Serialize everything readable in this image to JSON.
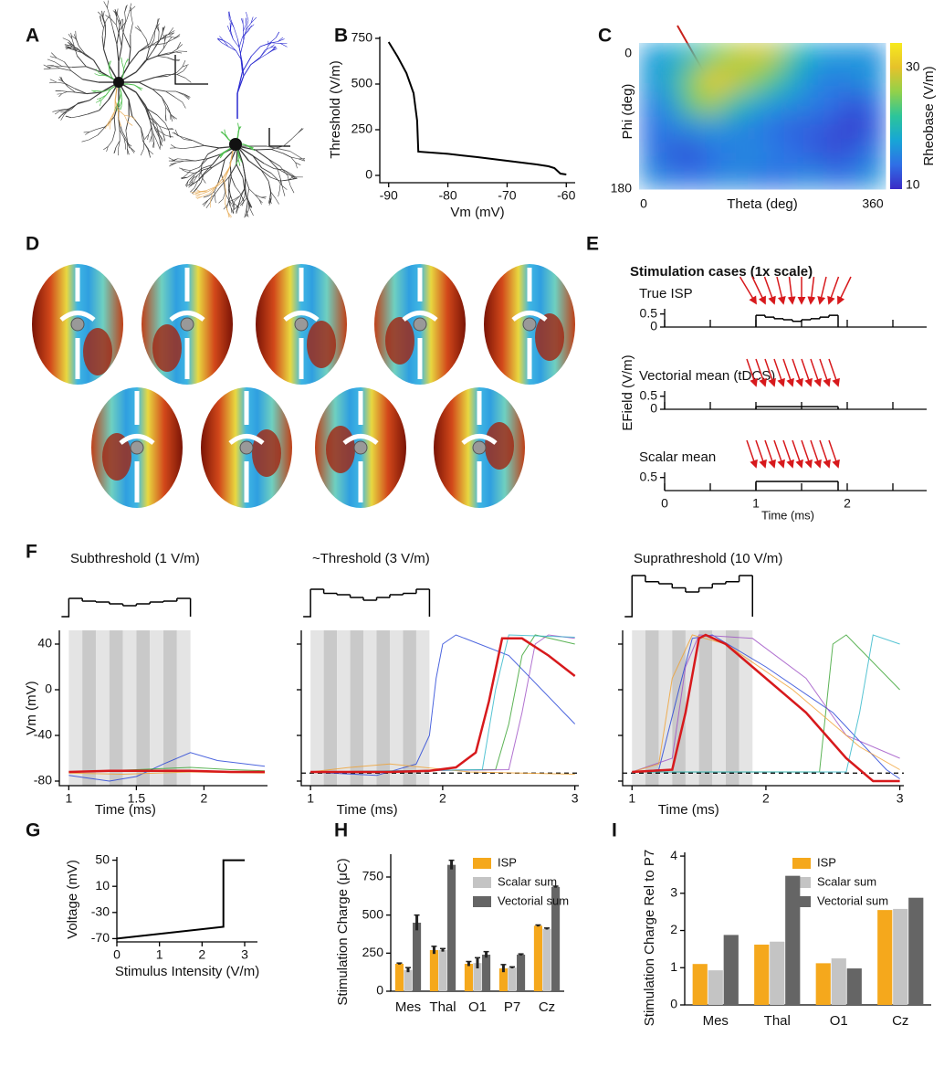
{
  "panel_labels": [
    "A",
    "B",
    "C",
    "D",
    "E",
    "F",
    "G",
    "H",
    "I"
  ],
  "chart_data": [
    {
      "type": "line",
      "xlabel": "Vm (mV)",
      "ylabel": "Threshold (V/m)",
      "color": "#000000",
      "x": [
        -90,
        -88.5,
        -87,
        -85.8,
        -85.2,
        -85,
        -80,
        -75,
        -70,
        -65,
        -63,
        -62,
        -61,
        -60
      ],
      "values": [
        730,
        650,
        560,
        450,
        300,
        130,
        118,
        100,
        80,
        60,
        50,
        40,
        10,
        5
      ],
      "xlim": [
        -91.5,
        -58.5
      ],
      "xticks": [
        -90,
        -80,
        -70,
        -60
      ],
      "ylim": [
        -40,
        760
      ],
      "yticks": [
        0,
        250,
        500,
        750
      ]
    },
    {
      "type": "heatmap",
      "xlabel": "Theta (deg)",
      "ylabel": "Phi (deg)",
      "colorbar_label": "Rheobase (V/m)",
      "xlim": [
        0,
        360
      ],
      "xticks": [
        0,
        360
      ],
      "ylim": [
        0,
        180
      ],
      "yticks": [
        0,
        180
      ],
      "y_inverted": true,
      "colorbar_lim": [
        10,
        34
      ],
      "colorbar_ticks": [
        10,
        30
      ],
      "colorscale": [
        "#3b2bc6",
        "#2f6fe6",
        "#17a6d6",
        "#2cc59a",
        "#92d14a",
        "#e6c22a",
        "#f7ea1e"
      ],
      "values": [
        [
          17,
          18,
          20,
          24,
          27,
          29,
          28,
          22,
          18,
          17,
          17,
          16
        ],
        [
          17,
          19,
          25,
          31,
          29,
          26,
          23,
          19,
          16,
          15,
          16,
          17
        ],
        [
          15,
          17,
          24,
          27,
          22,
          19,
          17,
          16,
          15,
          14,
          12,
          14
        ],
        [
          14,
          15,
          16,
          17,
          16,
          15,
          14,
          13,
          13,
          12,
          11,
          13
        ],
        [
          15,
          13,
          12,
          14,
          15,
          16,
          15,
          14,
          13,
          12,
          13,
          15
        ],
        [
          16,
          15,
          14,
          15,
          16,
          15,
          14,
          15,
          16,
          14,
          15,
          17
        ]
      ]
    },
    {
      "type": "step",
      "title": "Stimulation cases (1x scale)",
      "xlabel": "Time (ms)",
      "ylabel": "EField (V/m)",
      "xlim": [
        0,
        2.87
      ],
      "xticks": [
        0,
        1,
        2
      ],
      "xminor": [
        0.5,
        1.5,
        2.5
      ],
      "ylim": [
        0,
        0.7
      ],
      "color": "#000000",
      "arrow_color": "#d7191c",
      "subplots": [
        {
          "name": "True ISP",
          "yticks": [
            0,
            0.5
          ],
          "bins": [
            1,
            1.1,
            1.2,
            1.3,
            1.4,
            1.5,
            1.6,
            1.7,
            1.8,
            1.9
          ],
          "values": [
            0.45,
            0.38,
            0.32,
            0.28,
            0.22,
            0.28,
            0.32,
            0.38,
            0.45
          ]
        },
        {
          "name": "Vectorial mean (tDCS)",
          "yticks": [
            0,
            0.5
          ],
          "bins": [
            1,
            1.1,
            1.2,
            1.3,
            1.4,
            1.5,
            1.6,
            1.7,
            1.8,
            1.9
          ],
          "values": [
            0.1,
            0.1,
            0.1,
            0.1,
            0.1,
            0.1,
            0.1,
            0.1,
            0.1
          ]
        },
        {
          "name": "Scalar mean",
          "yticks": [
            0.5
          ],
          "bins": [
            1,
            1.1,
            1.2,
            1.3,
            1.4,
            1.5,
            1.6,
            1.7,
            1.8,
            1.9
          ],
          "values": [
            0.35,
            0.35,
            0.35,
            0.35,
            0.35,
            0.35,
            0.35,
            0.35,
            0.35
          ]
        }
      ]
    },
    {
      "type": "traces",
      "ylabel": "Vm (mV)",
      "ylim": [
        -84,
        52
      ],
      "yticks": [
        -80,
        -40,
        0,
        40
      ],
      "panels": [
        {
          "title": "Subthreshold (1 V/m)",
          "xlabel": "Time (ms)",
          "xlim": [
            0.93,
            2.47
          ],
          "xticks": [
            1,
            1.5,
            2
          ],
          "stim_bins": [
            1,
            1.1,
            1.2,
            1.3,
            1.4,
            1.5,
            1.6,
            1.7,
            1.8,
            1.9
          ],
          "stimulus": [
            1,
            0.85,
            0.8,
            0.7,
            0.6,
            0.7,
            0.8,
            0.85,
            1
          ],
          "series": [
            {
              "color": "#1f3fd6",
              "x": [
                1,
                1.3,
                1.5,
                1.7,
                1.9,
                2.1,
                2.45
              ],
              "values": [
                -75,
                -80,
                -76,
                -65,
                -55,
                -62,
                -67
              ]
            },
            {
              "color": "#33a02c",
              "x": [
                1,
                1.5,
                1.9,
                2.2,
                2.45
              ],
              "values": [
                -72,
                -70,
                -68,
                -70,
                -71
              ]
            },
            {
              "color": "#f0a030",
              "x": [
                1,
                1.4,
                1.9,
                2.45
              ],
              "values": [
                -73,
                -74,
                -72,
                -73
              ]
            },
            {
              "color": "#d7191c",
              "x": [
                1,
                1.3,
                1.6,
                1.9,
                2.2,
                2.45
              ],
              "values": [
                -72,
                -71,
                -71,
                -71,
                -72,
                -72
              ]
            }
          ]
        },
        {
          "title": "~Threshold (3 V/m)",
          "xlabel": "Time (ms)",
          "xlim": [
            0.93,
            3.03
          ],
          "xticks": [
            1,
            2,
            3
          ],
          "hline": -73,
          "stim_bins": [
            1,
            1.1,
            1.2,
            1.3,
            1.4,
            1.5,
            1.6,
            1.7,
            1.8,
            1.9
          ],
          "stimulus": [
            1,
            0.85,
            0.8,
            0.7,
            0.6,
            0.7,
            0.8,
            0.85,
            1
          ],
          "series": [
            {
              "color": "#1f3fd6",
              "x": [
                1,
                1.5,
                1.8,
                1.9,
                1.95,
                2,
                2.1,
                2.5,
                3
              ],
              "values": [
                -72,
                -75,
                -65,
                -40,
                10,
                40,
                48,
                30,
                -30
              ]
            },
            {
              "color": "#33a02c",
              "x": [
                1,
                2.4,
                2.5,
                2.6,
                2.7,
                3
              ],
              "values": [
                -72,
                -70,
                -30,
                30,
                48,
                40
              ]
            },
            {
              "color": "#9e4fc4",
              "x": [
                1,
                2.5,
                2.6,
                2.7,
                2.8,
                3
              ],
              "values": [
                -72,
                -70,
                -20,
                40,
                48,
                45
              ]
            },
            {
              "color": "#f0a030",
              "x": [
                1,
                1.3,
                1.6,
                2.2,
                2.6,
                3
              ],
              "values": [
                -72,
                -68,
                -65,
                -72,
                -73,
                -74
              ]
            },
            {
              "color": "#2cb5c8",
              "x": [
                1,
                2.3,
                2.4,
                2.5,
                3
              ],
              "values": [
                -72,
                -70,
                0,
                48,
                46
              ]
            },
            {
              "color": "#d7191c",
              "x": [
                1,
                1.6,
                1.9,
                2.1,
                2.25,
                2.35,
                2.45,
                2.6,
                2.8,
                3
              ],
              "values": [
                -72,
                -72,
                -71,
                -68,
                -55,
                -10,
                45,
                45,
                30,
                12
              ]
            }
          ]
        },
        {
          "title": "Suprathreshold (10 V/m)",
          "xlabel": "Time (ms)",
          "xlim": [
            0.93,
            3.03
          ],
          "xticks": [
            1,
            2,
            3
          ],
          "hline": -73,
          "stim_bins": [
            1,
            1.1,
            1.2,
            1.3,
            1.4,
            1.5,
            1.6,
            1.7,
            1.8,
            1.9
          ],
          "stimulus": [
            1,
            0.85,
            0.8,
            0.7,
            0.6,
            0.7,
            0.8,
            0.85,
            1
          ],
          "series": [
            {
              "color": "#1f3fd6",
              "x": [
                1,
                1.2,
                1.35,
                1.45,
                1.6,
                2,
                2.5,
                2.9,
                3
              ],
              "values": [
                -72,
                -70,
                0,
                45,
                48,
                20,
                -20,
                -70,
                -78
              ]
            },
            {
              "color": "#33a02c",
              "x": [
                1,
                2.4,
                2.5,
                2.6,
                3
              ],
              "values": [
                -72,
                -72,
                40,
                48,
                0
              ]
            },
            {
              "color": "#9e4fc4",
              "x": [
                1,
                1.3,
                1.4,
                1.5,
                1.9,
                2.3,
                2.6,
                3
              ],
              "values": [
                -72,
                -60,
                20,
                48,
                45,
                10,
                -40,
                -60
              ]
            },
            {
              "color": "#f0a030",
              "x": [
                1,
                1.2,
                1.3,
                1.45,
                1.7,
                2.2,
                2.7,
                3
              ],
              "values": [
                -72,
                -65,
                10,
                48,
                40,
                0,
                -50,
                -70
              ]
            },
            {
              "color": "#2cb5c8",
              "x": [
                1,
                2.6,
                2.7,
                2.8,
                3
              ],
              "values": [
                -72,
                -72,
                -20,
                48,
                40
              ]
            },
            {
              "color": "#d7191c",
              "x": [
                1,
                1.3,
                1.4,
                1.5,
                1.55,
                1.7,
                2,
                2.3,
                2.6,
                2.8,
                3
              ],
              "values": [
                -72,
                -70,
                -20,
                45,
                48,
                40,
                10,
                -20,
                -60,
                -80,
                -80
              ]
            }
          ]
        }
      ]
    },
    {
      "type": "line",
      "xlabel": "Stimulus Intensity (V/m)",
      "ylabel": "Voltage (mV)",
      "color": "#000000",
      "x": [
        0,
        2.5,
        2.5,
        3
      ],
      "values": [
        -70,
        -52,
        50,
        50
      ],
      "xlim": [
        0,
        3.3
      ],
      "xticks": [
        0,
        1,
        2,
        3
      ],
      "ylim": [
        -75,
        55
      ],
      "yticks": [
        -70,
        -30,
        10,
        50
      ]
    },
    {
      "type": "bar",
      "ylabel": "Stimulation Charge (μC)",
      "legend": "top-right",
      "categories": [
        "Mes",
        "Thal",
        "O1",
        "P7",
        "Cz"
      ],
      "ylim": [
        0,
        900
      ],
      "yticks": [
        0,
        250,
        500,
        750
      ],
      "series": [
        {
          "name": "ISP",
          "color": "#f5a81c",
          "values": [
            180,
            270,
            180,
            150,
            430
          ],
          "errors": [
            5,
            25,
            15,
            25,
            5
          ]
        },
        {
          "name": "Scalar sum",
          "color": "#c4c4c4",
          "values": [
            140,
            270,
            185,
            155,
            410
          ],
          "errors": [
            15,
            10,
            35,
            5,
            5
          ]
        },
        {
          "name": "Vectorial sum",
          "color": "#656565",
          "values": [
            450,
            830,
            240,
            240,
            685
          ],
          "errors": [
            50,
            30,
            20,
            5,
            5
          ]
        }
      ]
    },
    {
      "type": "bar",
      "ylabel": "Stimulation Charge Rel to P7",
      "legend": "top-right",
      "categories": [
        "Mes",
        "Thal",
        "O1",
        "Cz"
      ],
      "ylim": [
        0,
        4.1
      ],
      "yticks": [
        0,
        1,
        2,
        3,
        4
      ],
      "series": [
        {
          "name": "ISP",
          "color": "#f5a81c",
          "values": [
            1.1,
            1.62,
            1.12,
            2.55
          ]
        },
        {
          "name": "Scalar sum",
          "color": "#c4c4c4",
          "values": [
            0.93,
            1.7,
            1.25,
            2.58
          ]
        },
        {
          "name": "Vectorial sum",
          "color": "#656565",
          "values": [
            1.88,
            3.47,
            0.98,
            2.88
          ]
        }
      ]
    }
  ]
}
